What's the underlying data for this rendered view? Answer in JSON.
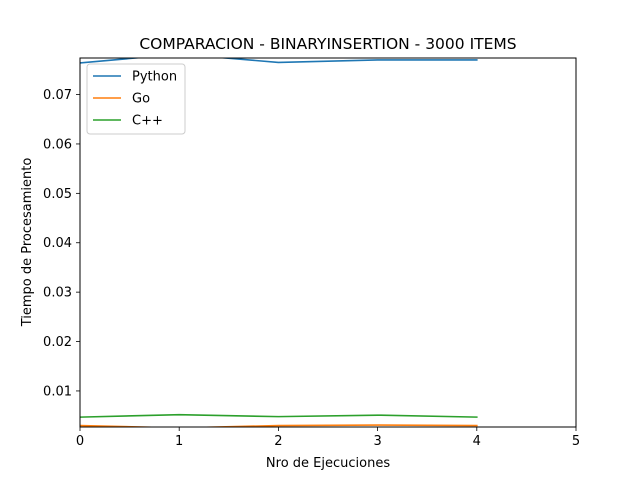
{
  "chart_data": {
    "type": "line",
    "title": "COMPARACION - BINARYINSERTION - 3000 ITEMS",
    "xlabel": "Nro de Ejecuciones",
    "ylabel": "Tiempo de Procesamiento",
    "xlim": [
      0,
      5
    ],
    "ylim": [
      0.0027,
      0.0774
    ],
    "x_ticks": [
      0,
      1,
      2,
      3,
      4,
      5
    ],
    "x_tick_labels": [
      "0",
      "1",
      "2",
      "3",
      "4",
      "5"
    ],
    "y_ticks": [
      0.01,
      0.02,
      0.03,
      0.04,
      0.05,
      0.06,
      0.07
    ],
    "y_tick_labels": [
      "0.01",
      "0.02",
      "0.03",
      "0.04",
      "0.05",
      "0.06",
      "0.07"
    ],
    "grid": false,
    "legend_position": "top-left",
    "x": [
      0,
      1,
      2,
      3,
      4
    ],
    "series": [
      {
        "name": "Python",
        "color": "#1f77b4",
        "values": [
          0.0764,
          0.0782,
          0.0765,
          0.077,
          0.077
        ]
      },
      {
        "name": "Go",
        "color": "#ff7f0e",
        "values": [
          0.003,
          0.0025,
          0.003,
          0.0031,
          0.003
        ]
      },
      {
        "name": "C++",
        "color": "#2ca02c",
        "values": [
          0.0047,
          0.0052,
          0.0048,
          0.0051,
          0.0047
        ]
      }
    ]
  }
}
